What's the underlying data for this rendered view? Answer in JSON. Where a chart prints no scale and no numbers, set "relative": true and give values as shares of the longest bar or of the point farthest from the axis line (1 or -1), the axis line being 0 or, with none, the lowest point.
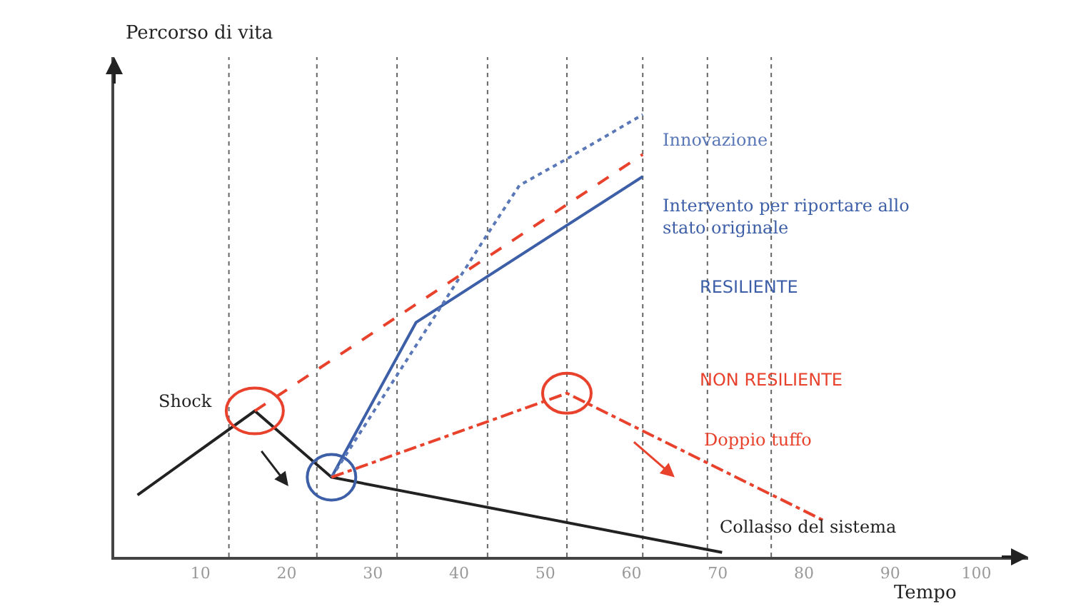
{
  "chart_data": {
    "type": "line",
    "relative": true,
    "xlabel": "Tempo",
    "ylabel": "Percorso di vita",
    "xlim": [
      0,
      106
    ],
    "xticks": [
      10,
      20,
      30,
      40,
      50,
      60,
      70,
      80,
      90,
      100
    ],
    "tick_labels": "x",
    "grid": false,
    "series": [
      {
        "color": "#222222",
        "line_style": "solid",
        "x": [
          2.7,
          16.3,
          25.2,
          70.5
        ],
        "values": [
          0.14,
          0.33,
          0.18,
          0.01
        ]
      },
      {
        "color": "#e8412c",
        "line_style": "dashed",
        "x": [
          16.3,
          61.3
        ],
        "values": [
          0.33,
          0.91
        ]
      },
      {
        "color": "#3d5fa8",
        "line_style": "solid",
        "x": [
          25.2,
          35,
          61.3
        ],
        "values": [
          0.18,
          0.53,
          0.86
        ]
      },
      {
        "color": "#5a78b8",
        "line_style": "dotted",
        "x": [
          25.2,
          43.3,
          47,
          52.5,
          61.3
        ],
        "values": [
          0.18,
          0.73,
          0.84,
          0.9,
          1.0
        ]
      },
      {
        "color": "#e8412c",
        "line_style": "dashdot",
        "x": [
          25.2,
          52.5,
          82.5
        ],
        "values": [
          0.18,
          0.37,
          0.08
        ]
      }
    ],
    "ref_lines": [
      {
        "axis": "x",
        "value": 13.3,
        "line_style": "dotted",
        "color": "#666666"
      },
      {
        "axis": "x",
        "value": 23.5,
        "line_style": "dotted",
        "color": "#666666"
      },
      {
        "axis": "x",
        "value": 32.8,
        "line_style": "dotted",
        "color": "#666666"
      },
      {
        "axis": "x",
        "value": 43.3,
        "line_style": "dotted",
        "color": "#666666"
      },
      {
        "axis": "x",
        "value": 52.5,
        "line_style": "dotted",
        "color": "#666666"
      },
      {
        "axis": "x",
        "value": 61.3,
        "line_style": "dotted",
        "color": "#666666"
      },
      {
        "axis": "x",
        "value": 68.8,
        "line_style": "dotted",
        "color": "#666666"
      },
      {
        "axis": "x",
        "value": 76.2,
        "line_style": "dotted",
        "color": "#666666"
      }
    ],
    "annotations": [
      "Shock",
      "Innovazione",
      "Intervento per riportare allo\nstato originale",
      "RESILIENTE",
      "NON RESILIENTE",
      "Doppio tuffo",
      "Collasso del sistema"
    ]
  }
}
